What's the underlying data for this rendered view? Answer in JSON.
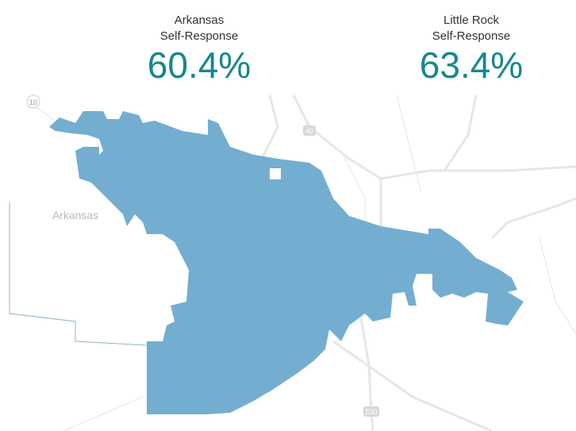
{
  "stats": [
    {
      "title": [
        "Arkansas",
        "Self-Response"
      ],
      "value": "60.4%"
    },
    {
      "title": [
        "Little Rock",
        "Self-Response"
      ],
      "value": "63.4%"
    }
  ],
  "map": {
    "state_label": "Arkansas",
    "shields": [
      "10",
      "40",
      "530"
    ]
  }
}
